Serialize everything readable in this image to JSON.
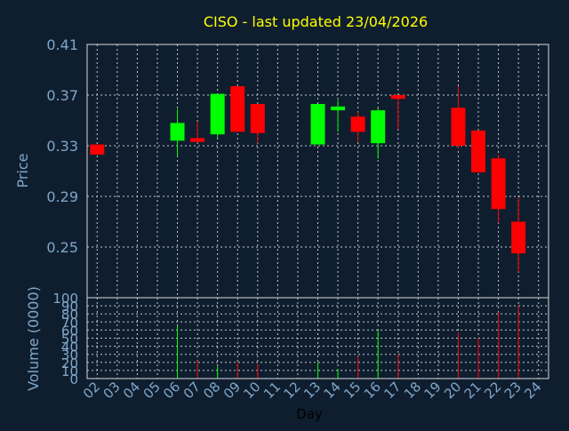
{
  "chart_data": {
    "type": "candlestick",
    "title": "CISO - last updated 23/04/2026",
    "xlabel": "Day",
    "x_ticks": [
      "02",
      "03",
      "04",
      "05",
      "06",
      "07",
      "08",
      "09",
      "10",
      "11",
      "12",
      "13",
      "14",
      "15",
      "16",
      "17",
      "18",
      "19",
      "20",
      "21",
      "22",
      "23",
      "24"
    ],
    "price_panel": {
      "ylabel": "Price",
      "ylim": [
        0.21,
        0.41
      ],
      "y_ticks": [
        "0.41",
        "0.37",
        "0.33",
        "0.29",
        "0.25"
      ],
      "grid": true
    },
    "volume_panel": {
      "ylabel": "Volume (0000)",
      "ylim": [
        0,
        100
      ],
      "y_ticks": [
        "100",
        "90",
        "80",
        "70",
        "60",
        "50",
        "40",
        "30",
        "20",
        "10",
        "0"
      ],
      "grid": true
    },
    "candles": [
      {
        "day": 2,
        "open": 0.331,
        "close": 0.323,
        "high": 0.331,
        "low": 0.323,
        "volume": 0
      },
      {
        "day": 6,
        "open": 0.334,
        "close": 0.348,
        "high": 0.359,
        "low": 0.322,
        "volume": 65
      },
      {
        "day": 7,
        "open": 0.336,
        "close": 0.333,
        "high": 0.349,
        "low": 0.333,
        "volume": 22
      },
      {
        "day": 8,
        "open": 0.339,
        "close": 0.371,
        "high": 0.371,
        "low": 0.336,
        "volume": 15
      },
      {
        "day": 9,
        "open": 0.377,
        "close": 0.341,
        "high": 0.377,
        "low": 0.341,
        "volume": 20
      },
      {
        "day": 10,
        "open": 0.363,
        "close": 0.34,
        "high": 0.363,
        "low": 0.332,
        "volume": 18
      },
      {
        "day": 13,
        "open": 0.331,
        "close": 0.363,
        "high": 0.363,
        "low": 0.331,
        "volume": 20
      },
      {
        "day": 14,
        "open": 0.358,
        "close": 0.361,
        "high": 0.366,
        "low": 0.341,
        "volume": 12
      },
      {
        "day": 15,
        "open": 0.353,
        "close": 0.341,
        "high": 0.357,
        "low": 0.333,
        "volume": 28
      },
      {
        "day": 16,
        "open": 0.332,
        "close": 0.358,
        "high": 0.36,
        "low": 0.32,
        "volume": 60
      },
      {
        "day": 17,
        "open": 0.37,
        "close": 0.367,
        "high": 0.37,
        "low": 0.343,
        "volume": 30
      },
      {
        "day": 20,
        "open": 0.36,
        "close": 0.33,
        "high": 0.377,
        "low": 0.328,
        "volume": 57
      },
      {
        "day": 21,
        "open": 0.342,
        "close": 0.309,
        "high": 0.342,
        "low": 0.309,
        "volume": 50
      },
      {
        "day": 22,
        "open": 0.32,
        "close": 0.28,
        "high": 0.323,
        "low": 0.269,
        "volume": 82
      },
      {
        "day": 23,
        "open": 0.27,
        "close": 0.245,
        "high": 0.289,
        "low": 0.23,
        "volume": 90
      }
    ],
    "colors": {
      "background": "#0f1e2f",
      "plot_border": "#d9d9d9",
      "grid": "#c8c8c8",
      "axis_text": "#7fa7c9",
      "title": "#ffff00",
      "xlabel": "#000000",
      "up": "#00ff00",
      "down": "#ff0000"
    }
  }
}
